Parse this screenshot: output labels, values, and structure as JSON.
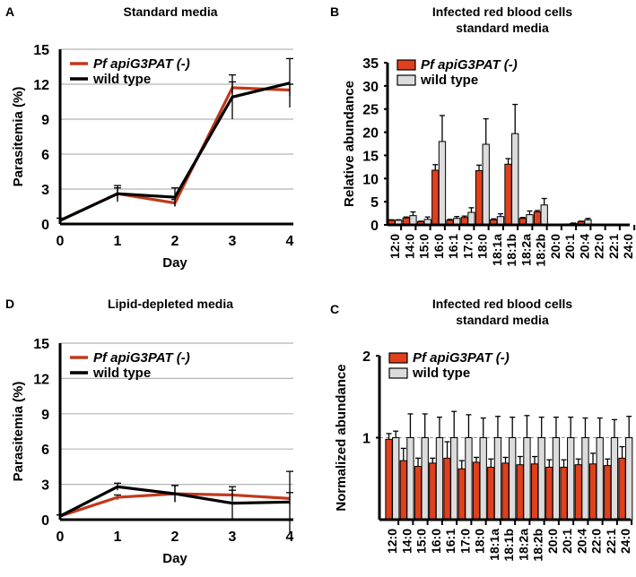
{
  "colors": {
    "mutant": "#e0401c",
    "mutant_line": "#c0391b",
    "wild_type": "#dcdcdc",
    "axis": "#000000",
    "grid": "#b4b4b4"
  },
  "chart_data": [
    {
      "panel": "A",
      "type": "line",
      "title": "Standard media",
      "xlabel": "Day",
      "ylabel": "Parasitemia (%)",
      "x": [
        0,
        1,
        2,
        3,
        4
      ],
      "xlim": [
        0,
        4
      ],
      "ylim": [
        0,
        15
      ],
      "yticks": [
        0,
        3,
        6,
        9,
        12,
        15
      ],
      "grid": true,
      "legend": "top-left",
      "series": [
        {
          "name": "Pf apiG3PAT (-)",
          "values": [
            0.3,
            2.6,
            1.8,
            11.7,
            11.5
          ],
          "errors": [
            0.2,
            0.5,
            0.3,
            0.5,
            0.5
          ]
        },
        {
          "name": "wild type",
          "values": [
            0.3,
            2.6,
            2.3,
            10.9,
            12.1
          ],
          "errors": [
            0.2,
            0.7,
            0.8,
            1.9,
            2.1
          ]
        }
      ]
    },
    {
      "panel": "B",
      "type": "bar",
      "title": [
        "Infected red blood cells",
        "standard media"
      ],
      "xlabel": "",
      "ylabel": "Relative abundance",
      "categories": [
        "12:0",
        "14:0",
        "15:0",
        "16:0",
        "16:1",
        "17:0",
        "18:0",
        "18:1a",
        "18:1b",
        "18:2a",
        "18:2b",
        "20:0",
        "20:1",
        "20:4",
        "22:0",
        "22:1",
        "24:0"
      ],
      "ylim": [
        0,
        35
      ],
      "yticks": [
        0,
        5,
        10,
        15,
        20,
        25,
        30,
        35
      ],
      "grid": false,
      "legend": "top-left",
      "series": [
        {
          "name": "Pf apiG3PAT (-)",
          "values": [
            1.0,
            1.5,
            0.7,
            11.8,
            1.0,
            1.6,
            11.7,
            1.1,
            13.1,
            1.4,
            2.8,
            0.1,
            0.2,
            0.7,
            0,
            0,
            0
          ],
          "errors": [
            0.1,
            0.2,
            0.1,
            1.2,
            0.2,
            0.3,
            1.2,
            0.2,
            1.2,
            0.2,
            0.3,
            0,
            0,
            0.1,
            0,
            0,
            0
          ]
        },
        {
          "name": "wild type",
          "values": [
            1.0,
            2.0,
            1.2,
            18.0,
            1.4,
            2.7,
            17.4,
            1.8,
            19.7,
            2.2,
            4.3,
            0.1,
            0.3,
            1.1,
            0,
            0,
            0
          ],
          "errors": [
            0.1,
            0.8,
            0.5,
            5.6,
            0.4,
            1.0,
            5.5,
            0.6,
            6.3,
            0.8,
            1.4,
            0,
            0.1,
            0.3,
            0,
            0,
            0
          ]
        }
      ]
    },
    {
      "panel": "D",
      "type": "line",
      "title": "Lipid-depleted media",
      "xlabel": "Day",
      "ylabel": "Parasitemia (%)",
      "x": [
        0,
        1,
        2,
        3,
        4
      ],
      "xlim": [
        0,
        4
      ],
      "ylim": [
        0,
        15
      ],
      "yticks": [
        0,
        3,
        6,
        9,
        12,
        15
      ],
      "grid": true,
      "legend": "top-left",
      "series": [
        {
          "name": "Pf apiG3PAT (-)",
          "values": [
            0.3,
            1.9,
            2.2,
            2.1,
            1.8
          ],
          "errors": [
            0.1,
            0.2,
            0.7,
            0.4,
            0.5
          ]
        },
        {
          "name": "wild type",
          "values": [
            0.3,
            2.8,
            2.2,
            1.4,
            1.5
          ],
          "errors": [
            0.1,
            0.3,
            0.7,
            1.4,
            2.6
          ]
        }
      ]
    },
    {
      "panel": "C",
      "type": "bar",
      "title": [
        "Infected red blood cells",
        "standard media"
      ],
      "xlabel": "",
      "ylabel": "Normalized abundance",
      "categories": [
        "12:0",
        "14:0",
        "15:0",
        "16:0",
        "16:1",
        "17:0",
        "18:0",
        "18:1a",
        "18:1b",
        "18:2a",
        "18:2b",
        "20:0",
        "20:1",
        "20:4",
        "22:0",
        "22:1",
        "24:0"
      ],
      "ylim": [
        0,
        2
      ],
      "yticks": [
        1,
        2
      ],
      "reference_line": 1,
      "grid": false,
      "legend": "top-left",
      "series": [
        {
          "name": "Pf apiG3PAT (-)",
          "values": [
            0.98,
            0.72,
            0.65,
            0.69,
            0.75,
            0.62,
            0.7,
            0.64,
            0.69,
            0.67,
            0.68,
            0.64,
            0.64,
            0.67,
            0.68,
            0.66,
            0.75
          ],
          "errors": [
            0.07,
            0.15,
            0.1,
            0.06,
            0.2,
            0.1,
            0.06,
            0.1,
            0.07,
            0.1,
            0.09,
            0.09,
            0.09,
            0.07,
            0.13,
            0.08,
            0.14
          ]
        },
        {
          "name": "wild type",
          "values": [
            1,
            1,
            1,
            1,
            1,
            1,
            1,
            1,
            1,
            1,
            1,
            1,
            1,
            1,
            1,
            1,
            1
          ],
          "errors": [
            0.08,
            0.29,
            0.29,
            0.25,
            0.32,
            0.28,
            0.24,
            0.26,
            0.25,
            0.27,
            0.25,
            0.25,
            0.25,
            0.24,
            0.24,
            0.22,
            0.26
          ]
        }
      ]
    }
  ]
}
